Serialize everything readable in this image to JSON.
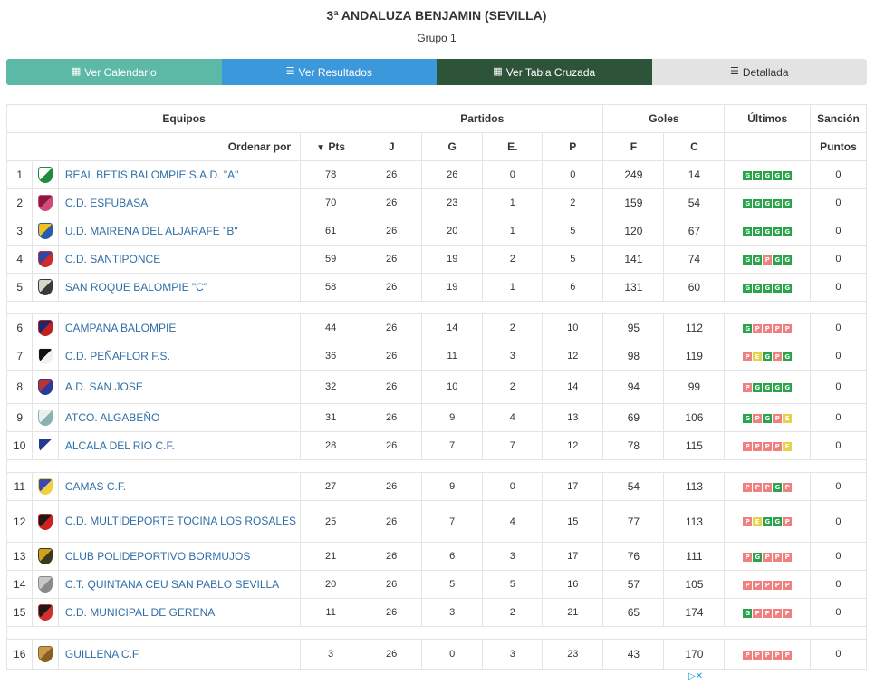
{
  "header": {
    "title": "3ª ANDALUZA BENJAMIN (SEVILLA)",
    "subtitle": "Grupo 1"
  },
  "nav": [
    {
      "label": "Ver Calendario",
      "icon": "calendar-icon",
      "glyph": "▦"
    },
    {
      "label": "Ver Resultados",
      "icon": "list-icon",
      "glyph": "☰"
    },
    {
      "label": "Ver Tabla Cruzada",
      "icon": "table-icon",
      "glyph": "▦"
    },
    {
      "label": "Detallada",
      "icon": "detail-list-icon",
      "glyph": "☰"
    }
  ],
  "table": {
    "group_headers": {
      "equipos": "Equipos",
      "partidos": "Partidos",
      "goles": "Goles",
      "ultimos": "Últimos",
      "sancion": "Sanción"
    },
    "sub_headers": {
      "ordenar_por": "Ordenar por",
      "pts": "Pts",
      "j": "J",
      "g": "G",
      "e": "E.",
      "p": "P",
      "f": "F",
      "c": "C",
      "puntos": "Puntos"
    },
    "colors": {
      "win": "#2aa44a",
      "loss": "#f08080",
      "draw": "#e8d24a",
      "team_link": "#2f6ea8"
    },
    "rows": [
      {
        "pos": "1",
        "team": "REAL BETIS BALOMPIE S.A.D. \"A\"",
        "crest": [
          "#ffffff",
          "#1e8c3a"
        ],
        "pts": "78",
        "j": "26",
        "g": "26",
        "e": "0",
        "p": "0",
        "f": "249",
        "c": "14",
        "form": [
          "G",
          "G",
          "G",
          "G",
          "G"
        ],
        "sancion": "0"
      },
      {
        "pos": "2",
        "team": "C.D. ESFUBASA",
        "crest": [
          "#8b1a3a",
          "#d14a7a"
        ],
        "pts": "70",
        "j": "26",
        "g": "23",
        "e": "1",
        "p": "2",
        "f": "159",
        "c": "54",
        "form": [
          "G",
          "G",
          "G",
          "G",
          "G"
        ],
        "sancion": "0"
      },
      {
        "pos": "3",
        "team": "U.D. MAIRENA DEL ALJARAFE \"B\"",
        "crest": [
          "#f2c020",
          "#2a5ab0"
        ],
        "pts": "61",
        "j": "26",
        "g": "20",
        "e": "1",
        "p": "5",
        "f": "120",
        "c": "67",
        "form": [
          "G",
          "G",
          "G",
          "G",
          "G"
        ],
        "sancion": "0"
      },
      {
        "pos": "4",
        "team": "C.D. SANTIPONCE",
        "crest": [
          "#2a4aa8",
          "#d02a2a"
        ],
        "pts": "59",
        "j": "26",
        "g": "19",
        "e": "2",
        "p": "5",
        "f": "141",
        "c": "74",
        "form": [
          "G",
          "G",
          "P",
          "G",
          "G"
        ],
        "sancion": "0"
      },
      {
        "pos": "5",
        "team": "SAN ROQUE BALOMPIE \"C\"",
        "crest": [
          "#d8d8c8",
          "#3a3a3a"
        ],
        "pts": "58",
        "j": "26",
        "g": "19",
        "e": "1",
        "p": "6",
        "f": "131",
        "c": "60",
        "form": [
          "G",
          "G",
          "G",
          "G",
          "G"
        ],
        "sancion": "0"
      },
      {
        "spacer": true
      },
      {
        "pos": "6",
        "team": "CAMPANA BALOMPIE",
        "crest": [
          "#1a2a6a",
          "#c02020"
        ],
        "pts": "44",
        "j": "26",
        "g": "14",
        "e": "2",
        "p": "10",
        "f": "95",
        "c": "112",
        "form": [
          "G",
          "P",
          "P",
          "P",
          "P"
        ],
        "sancion": "0"
      },
      {
        "pos": "7",
        "team": "C.D. PEÑAFLOR F.S.",
        "crest": [
          "#111111",
          "#f0f0f0"
        ],
        "pts": "36",
        "j": "26",
        "g": "11",
        "e": "3",
        "p": "12",
        "f": "98",
        "c": "119",
        "form": [
          "P",
          "E",
          "G",
          "P",
          "G"
        ],
        "sancion": "0"
      },
      {
        "pos": "8",
        "team": "A.D. SAN JOSE",
        "crest": [
          "#c03030",
          "#2a3a9a"
        ],
        "pts": "32",
        "j": "26",
        "g": "10",
        "e": "2",
        "p": "14",
        "f": "94",
        "c": "99",
        "form": [
          "P",
          "G",
          "G",
          "G",
          "G"
        ],
        "sancion": "0"
      },
      {
        "pos": "9",
        "team": "ATCO. ALGABEÑO",
        "crest": [
          "#e8f0f0",
          "#8ab0b0"
        ],
        "pts": "31",
        "j": "26",
        "g": "9",
        "e": "4",
        "p": "13",
        "f": "69",
        "c": "106",
        "form": [
          "G",
          "P",
          "G",
          "P",
          "E"
        ],
        "sancion": "0"
      },
      {
        "pos": "10",
        "team": "ALCALA DEL RIO C.F.",
        "crest": [
          "#2a3a8a",
          "#ffffff"
        ],
        "pts": "28",
        "j": "26",
        "g": "7",
        "e": "7",
        "p": "12",
        "f": "78",
        "c": "115",
        "form": [
          "P",
          "P",
          "P",
          "P",
          "E"
        ],
        "sancion": "0"
      },
      {
        "spacer": true
      },
      {
        "pos": "11",
        "team": "CAMAS C.F.",
        "crest": [
          "#3a4ab0",
          "#f0d040"
        ],
        "pts": "27",
        "j": "26",
        "g": "9",
        "e": "0",
        "p": "17",
        "f": "54",
        "c": "113",
        "form": [
          "P",
          "P",
          "P",
          "G",
          "P"
        ],
        "sancion": "0"
      },
      {
        "pos": "12",
        "team": "C.D. MULTIDEPORTE TOCINA LOS ROSALES",
        "crest": [
          "#1a1a1a",
          "#d02020"
        ],
        "pts": "25",
        "j": "26",
        "g": "7",
        "e": "4",
        "p": "15",
        "f": "77",
        "c": "113",
        "form": [
          "P",
          "E",
          "G",
          "G",
          "P"
        ],
        "sancion": "0"
      },
      {
        "pos": "13",
        "team": "CLUB POLIDEPORTIVO BORMUJOS",
        "crest": [
          "#d0a020",
          "#3a3a1a"
        ],
        "pts": "21",
        "j": "26",
        "g": "6",
        "e": "3",
        "p": "17",
        "f": "76",
        "c": "111",
        "form": [
          "P",
          "G",
          "P",
          "P",
          "P"
        ],
        "sancion": "0"
      },
      {
        "pos": "14",
        "team": "C.T. QUINTANA CEU SAN PABLO SEVILLA",
        "crest": [
          "#c8c8c8",
          "#8a8a8a"
        ],
        "pts": "20",
        "j": "26",
        "g": "5",
        "e": "5",
        "p": "16",
        "f": "57",
        "c": "105",
        "form": [
          "P",
          "P",
          "P",
          "P",
          "P"
        ],
        "sancion": "0"
      },
      {
        "pos": "15",
        "team": "C.D. MUNICIPAL DE GERENA",
        "crest": [
          "#1a1a1a",
          "#d03030"
        ],
        "pts": "11",
        "j": "26",
        "g": "3",
        "e": "2",
        "p": "21",
        "f": "65",
        "c": "174",
        "form": [
          "G",
          "P",
          "P",
          "P",
          "P"
        ],
        "sancion": "0"
      },
      {
        "spacer": true
      },
      {
        "pos": "16",
        "team": "GUILLENA C.F.",
        "crest": [
          "#c89a4a",
          "#8a6020"
        ],
        "pts": "3",
        "j": "26",
        "g": "0",
        "e": "3",
        "p": "23",
        "f": "43",
        "c": "170",
        "form": [
          "P",
          "P",
          "P",
          "P",
          "P"
        ],
        "sancion": "0"
      }
    ]
  },
  "ad": {
    "label": "▷✕"
  }
}
